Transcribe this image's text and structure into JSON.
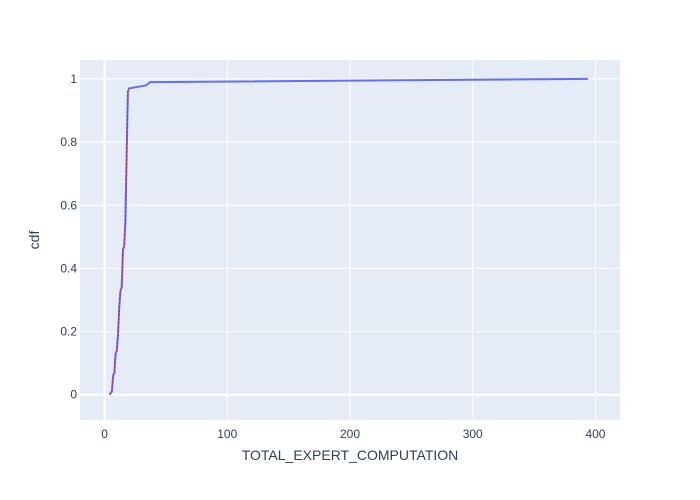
{
  "chart_data": {
    "type": "line",
    "title": "",
    "xlabel": "TOTAL_EXPERT_COMPUTATION",
    "ylabel": "cdf",
    "xlim": [
      -20,
      420
    ],
    "ylim": [
      -0.08,
      1.06
    ],
    "xticks": [
      0,
      100,
      200,
      300,
      400
    ],
    "yticks": [
      0,
      0.2,
      0.4,
      0.6,
      0.8,
      1
    ],
    "xtick_labels": [
      "0",
      "100",
      "200",
      "300",
      "400"
    ],
    "ytick_labels": [
      "0",
      "0.2",
      "0.4",
      "0.6",
      "0.8",
      "1"
    ],
    "grid": true,
    "legend": "none",
    "colors": {
      "plot_bg": "#e5ecf6",
      "grid": "#ffffff",
      "text": "#2a3f5f",
      "line": "#636efa",
      "line_overlay": "#d62728"
    },
    "series": [
      {
        "x": [
          4,
          6,
          7,
          8,
          9,
          10,
          11,
          12,
          13,
          14,
          15,
          16,
          17,
          18,
          19,
          20,
          34,
          37,
          38,
          394
        ],
        "y": [
          0.0,
          0.01,
          0.06,
          0.07,
          0.13,
          0.14,
          0.19,
          0.28,
          0.33,
          0.34,
          0.46,
          0.47,
          0.55,
          0.75,
          0.96,
          0.97,
          0.98,
          0.99,
          0.99,
          1.0
        ]
      }
    ]
  }
}
